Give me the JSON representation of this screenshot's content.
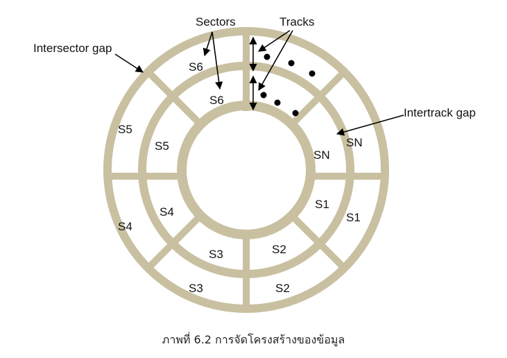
{
  "colors": {
    "ring": "#c8c0a0",
    "arrow": "#000000",
    "text": "#111111"
  },
  "labels": {
    "sectors": "Sectors",
    "tracks": "Tracks",
    "intersector_gap": "Intersector gap",
    "intertrack_gap": "Intertrack gap"
  },
  "outer_track": {
    "s6": "S6",
    "s5": "S5",
    "s4": "S4",
    "s3": "S3",
    "s2": "S2",
    "s1": "S1",
    "sn": "SN"
  },
  "inner_track": {
    "s6": "S6",
    "s5": "S5",
    "s4": "S4",
    "s3": "S3",
    "s2": "S2",
    "s1": "S1",
    "sn": "SN"
  },
  "caption": "ภาพที่ 6.2 การจัดโครงสร้างของข้อมูล"
}
